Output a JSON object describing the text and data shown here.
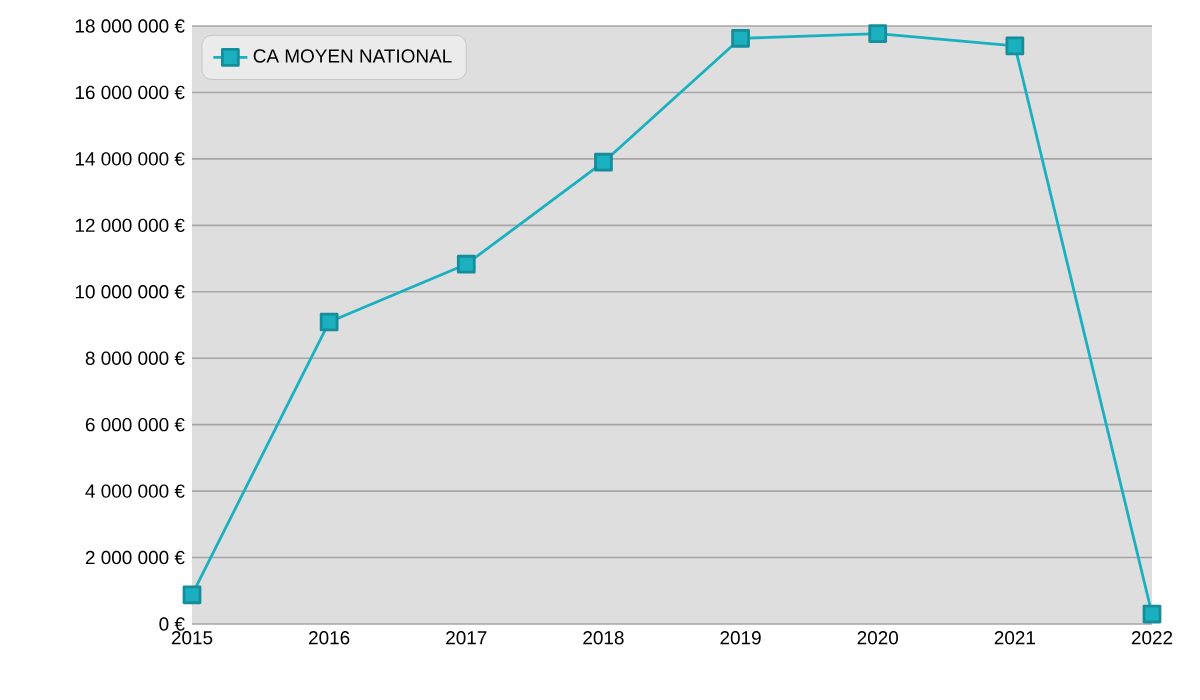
{
  "chart_data": {
    "type": "line",
    "categories": [
      "2015",
      "2016",
      "2017",
      "2018",
      "2019",
      "2020",
      "2021",
      "2022"
    ],
    "series": [
      {
        "name": "CA MOYEN NATIONAL",
        "color": "#1ab0c0",
        "values": [
          880000,
          9090000,
          10830000,
          13900000,
          17630000,
          17770000,
          17400000,
          300000
        ]
      }
    ],
    "ylim": [
      0,
      18000000
    ],
    "yticks": [
      {
        "value": 0,
        "label": "0 €"
      },
      {
        "value": 2000000,
        "label": "2 000 000 €"
      },
      {
        "value": 4000000,
        "label": "4 000 000 €"
      },
      {
        "value": 6000000,
        "label": "6 000 000 €"
      },
      {
        "value": 8000000,
        "label": "8 000 000 €"
      },
      {
        "value": 10000000,
        "label": "10 000 000 €"
      },
      {
        "value": 12000000,
        "label": "12 000 000 €"
      },
      {
        "value": 14000000,
        "label": "14 000 000 €"
      },
      {
        "value": 16000000,
        "label": "16 000 000 €"
      },
      {
        "value": 18000000,
        "label": "18 000 000 €"
      }
    ],
    "grid": "y",
    "legend": "top left",
    "marker": "square",
    "line_style": "solid"
  }
}
